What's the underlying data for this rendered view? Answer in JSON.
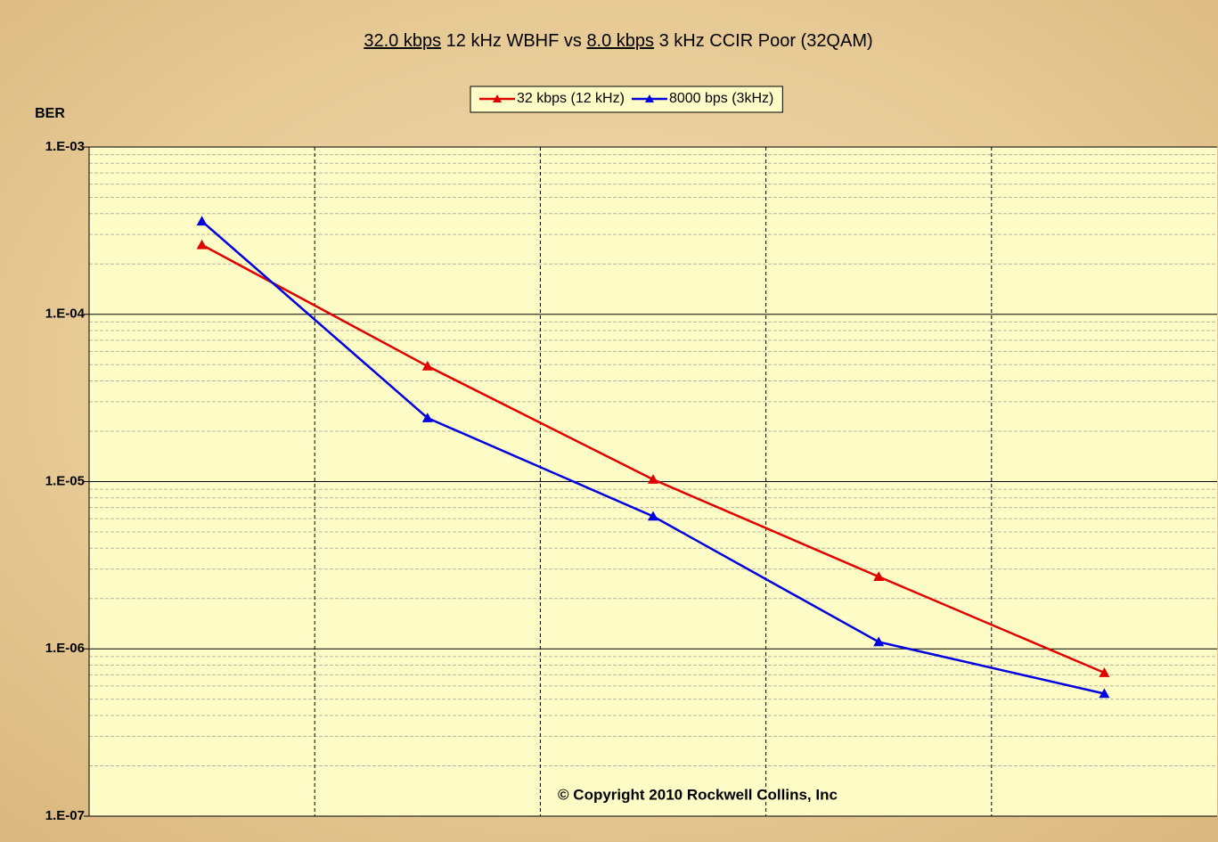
{
  "chart_data": {
    "type": "line",
    "title": [
      "32.0 kbps",
      " 12 kHz WBHF vs ",
      "8.0 kbps",
      " 3 kHz CCIR Poor (32QAM)"
    ],
    "y_label": "BER",
    "annotation": "© Copyright 2010 Rockwell Collins, Inc",
    "categories": [
      null,
      null,
      null,
      null,
      null
    ],
    "series": [
      {
        "name": "32 kbps (12 kHz)",
        "color": "#e00000",
        "values": [
          0.00026,
          4.9e-05,
          1.03e-05,
          2.7e-06,
          7.2e-07
        ]
      },
      {
        "name": "8000 bps (3kHz)",
        "color": "#0000e0",
        "values": [
          0.00036,
          2.4e-05,
          6.2e-06,
          1.1e-06,
          5.4e-07
        ]
      }
    ],
    "ylim": [
      1e-07,
      0.001
    ],
    "yticks": [
      {
        "value": 0.001,
        "label": "1.E-03"
      },
      {
        "value": 0.0001,
        "label": "1.E-04"
      },
      {
        "value": 1e-05,
        "label": "1.E-05"
      },
      {
        "value": 1e-06,
        "label": "1.E-06"
      },
      {
        "value": 1e-07,
        "label": "1.E-07"
      }
    ],
    "log_y": true,
    "grid": true,
    "legend": "top"
  }
}
